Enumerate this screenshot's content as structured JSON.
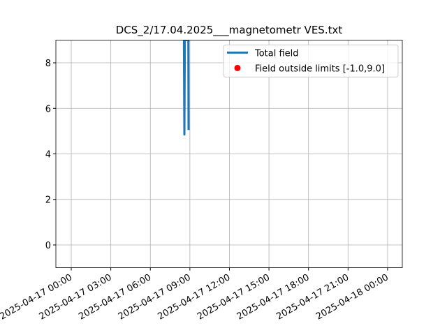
{
  "chart_data": {
    "type": "line",
    "title": "DCS_2/17.04.2025___magnetometr VES.txt",
    "xlim": [
      "2025-04-16 22:50",
      "2025-04-18 01:07"
    ],
    "xticks": [
      "2025-04-17 00:00",
      "2025-04-17 03:00",
      "2025-04-17 06:00",
      "2025-04-17 09:00",
      "2025-04-17 12:00",
      "2025-04-17 15:00",
      "2025-04-17 18:00",
      "2025-04-17 21:00",
      "2025-04-18 00:00"
    ],
    "ylim": [
      -1,
      9
    ],
    "yticks": [
      0,
      2,
      4,
      6,
      8
    ],
    "grid": true,
    "legend": "upper right",
    "series": [
      {
        "name": "Total field",
        "type": "line",
        "color": "#1f77b4",
        "x": [
          "2025-04-17 08:33",
          "2025-04-17 08:35",
          "2025-04-17 08:37",
          "2025-04-17 08:53",
          "2025-04-17 08:54"
        ],
        "values": [
          9,
          4.85,
          9,
          9,
          5.05
        ]
      },
      {
        "name": "Field outside limits [-1.0,9.0]",
        "type": "scatter",
        "color": "#ff0000",
        "x": [],
        "values": []
      }
    ]
  }
}
